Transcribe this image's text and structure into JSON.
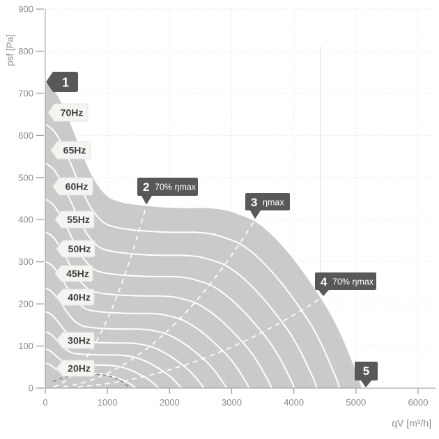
{
  "chart_data": {
    "type": "area",
    "xlabel": "qV [m³/h]",
    "ylabel": "psf [Pa]",
    "xlim": [
      0,
      6000
    ],
    "ylim": [
      0,
      900
    ],
    "x_ticks": [
      0,
      1000,
      2000,
      3000,
      4000,
      5000,
      6000
    ],
    "y_ticks": [
      0,
      100,
      200,
      300,
      400,
      500,
      600,
      700,
      800,
      900
    ],
    "grid": "dotted",
    "fan_curves": {
      "base_hz": 70,
      "base_points_qv_pa": [
        [
          0,
          727
        ],
        [
          150,
          708
        ],
        [
          300,
          668
        ],
        [
          450,
          615
        ],
        [
          600,
          558
        ],
        [
          750,
          508
        ],
        [
          900,
          473
        ],
        [
          1050,
          452
        ],
        [
          1250,
          442
        ],
        [
          1450,
          437
        ],
        [
          1700,
          433
        ],
        [
          2000,
          430
        ],
        [
          2300,
          429
        ],
        [
          2600,
          429
        ],
        [
          2900,
          424
        ],
        [
          3150,
          412
        ],
        [
          3370,
          398
        ],
        [
          3600,
          372
        ],
        [
          3850,
          334
        ],
        [
          4100,
          288
        ],
        [
          4350,
          235
        ],
        [
          4600,
          176
        ],
        [
          4800,
          116
        ],
        [
          4950,
          62
        ],
        [
          5060,
          20
        ],
        [
          5100,
          0
        ]
      ],
      "frequencies_hz": [
        70,
        65,
        60,
        55,
        50,
        45,
        40,
        35,
        30,
        25,
        20
      ],
      "labels": [
        {
          "hz": 70,
          "label": "70Hz"
        },
        {
          "hz": 65,
          "label": "65Hz"
        },
        {
          "hz": 60,
          "label": "60Hz"
        },
        {
          "hz": 55,
          "label": "55Hz"
        },
        {
          "hz": 50,
          "label": "50Hz"
        },
        {
          "hz": 45,
          "label": "45Hz"
        },
        {
          "hz": 40,
          "label": "40Hz"
        },
        {
          "hz": 30,
          "label": "30Hz"
        },
        {
          "hz": 20,
          "label": "20Hz"
        }
      ]
    },
    "efficiency_lines": [
      {
        "marker": "2",
        "label": "70% ηmax",
        "end_qv": 1626,
        "end_pa": 434
      },
      {
        "marker": "3",
        "label": "ηmax",
        "end_qv": 3375,
        "end_pa": 400
      },
      {
        "marker": "4",
        "label": "70% ηmax",
        "end_qv": 4470,
        "end_pa": 217
      }
    ],
    "markers": [
      {
        "n": "1",
        "label": "",
        "qv": 20,
        "pa": 727
      },
      {
        "n": "2",
        "label": "70% ηmax",
        "qv": 1626,
        "pa": 434
      },
      {
        "n": "3",
        "label": "ηmax",
        "qv": 3375,
        "pa": 400
      },
      {
        "n": "4",
        "label": "70% ηmax",
        "qv": 4470,
        "pa": 217
      },
      {
        "n": "5",
        "label": "",
        "qv": 5160,
        "pa": 0
      }
    ],
    "stall_boundary_qv_pa": [
      [
        130,
        16
      ],
      [
        350,
        27
      ],
      [
        600,
        32
      ],
      [
        850,
        33
      ],
      [
        1050,
        28
      ],
      [
        1220,
        17
      ],
      [
        1350,
        2
      ]
    ],
    "reference_line_qv": 4430,
    "colors": {
      "area_fill": "#cacaca",
      "curve": "#ffffff",
      "efficiency_dash": "#ffffff",
      "stall_dash": "#76767a",
      "grid": "#e2e2e2",
      "axis": "#9a9a9a",
      "tick_text": "#8b8b8b",
      "tag_bg": "#f4f4f1",
      "tag_border": "#e3e3de",
      "tag_text": "#3e3e3e",
      "marker_bg": "#58585a",
      "marker_text": "#ffffff",
      "reference_line": "#ececec"
    }
  }
}
